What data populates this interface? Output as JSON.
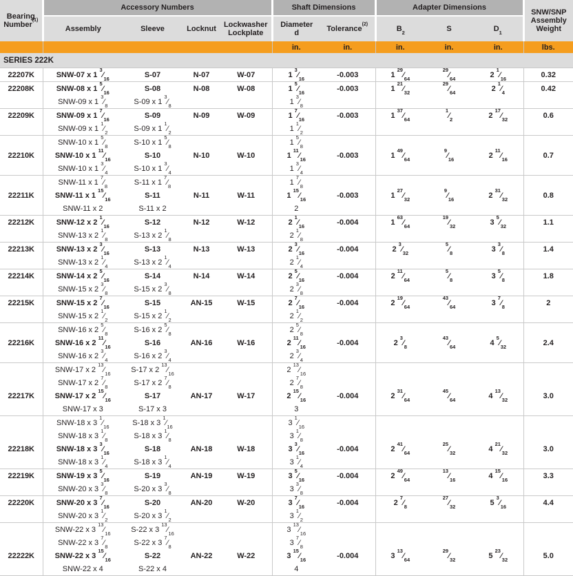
{
  "header": {
    "bearing": {
      "text": "Bearing Number",
      "sup": "(1)"
    },
    "accessory_group": "Accessory Numbers",
    "shaft_group": "Shaft Dimensions",
    "adapter_group": "Adapter Dimensions",
    "weight": "SNW/SNP Assembly Weight",
    "assembly": "Assembly",
    "sleeve": "Sleeve",
    "locknut": "Locknut",
    "lockwasher": "Lockwasher Lockplate",
    "diameter": {
      "line1": "Diameter",
      "line2": "d"
    },
    "tolerance": {
      "text": "Tolerance",
      "sup": "(2)"
    },
    "b2": {
      "text": "B",
      "sub": "2"
    },
    "s": "S",
    "d1": {
      "text": "D",
      "sub": "1"
    },
    "units": {
      "d": "in.",
      "tol": "in.",
      "b2": "in.",
      "s": "in.",
      "d1": "in.",
      "wt": "lbs."
    }
  },
  "series_label": "SERIES 222K",
  "colors": {
    "orange": "#F59D1E",
    "header_gray": "#DCDCDC",
    "group_gray": "#B2B2B2",
    "line_gray": "#C9C9C9"
  },
  "rows": [
    {
      "bearing": "22207K",
      "lines": [
        {
          "assembly": "SNW-07 x 1 3/16",
          "sleeve": "S-07",
          "locknut": "N-07",
          "lockwasher": "W-07",
          "d": "1 3/16",
          "tol": "-0.003",
          "b2": "1 29/64",
          "s": "29/64",
          "d1": "2 1/16",
          "wt": "0.32",
          "bold": true
        }
      ]
    },
    {
      "bearing": "22208K",
      "lines": [
        {
          "assembly": "SNW-08 x 1 5/16",
          "sleeve": "S-08",
          "locknut": "N-08",
          "lockwasher": "W-08",
          "d": "1 5/16",
          "tol": "-0.003",
          "b2": "1 21/32",
          "s": "29/64",
          "d1": "2 1/4",
          "wt": "0.42",
          "bold": true
        },
        {
          "assembly": "SNW-09 x 1 3/8",
          "sleeve": "S-09 x 1 3/8",
          "d": "1 3/8"
        }
      ]
    },
    {
      "bearing": "22209K",
      "lines": [
        {
          "assembly": "SNW-09 x 1 7/16",
          "sleeve": "S-09",
          "locknut": "N-09",
          "lockwasher": "W-09",
          "d": "1 7/16",
          "tol": "-0.003",
          "b2": "1 37/64",
          "s": "1/2",
          "d1": "2 17/32",
          "wt": "0.6",
          "bold": true
        },
        {
          "assembly": "SNW-09 x 1 1/2",
          "sleeve": "S-09 x 1 1/2",
          "d": "1 1/2"
        }
      ]
    },
    {
      "bearing": "22210K",
      "lines": [
        {
          "assembly": "SNW-10 x 1 5/8",
          "sleeve": "S-10 x 1 5/8",
          "d": "1 5/8"
        },
        {
          "assembly": "SNW-10 x 1 11/16",
          "sleeve": "S-10",
          "locknut": "N-10",
          "lockwasher": "W-10",
          "d": "1 11/16",
          "tol": "-0.003",
          "b2": "1 49/64",
          "s": "9/16",
          "d1": "2 11/16",
          "wt": "0.7",
          "bold": true
        },
        {
          "assembly": "SNW-10 x 1 3/4",
          "sleeve": "S-10 x 1 3/4",
          "d": "1 3/4"
        }
      ]
    },
    {
      "bearing": "22211K",
      "lines": [
        {
          "assembly": "SNW-11 x 1 7/8",
          "sleeve": "S-11 x 1 7/8",
          "d": "1 7/8"
        },
        {
          "assembly": "SNW-11 x 1 15/16",
          "sleeve": "S-11",
          "locknut": "N-11",
          "lockwasher": "W-11",
          "d": "1 15/16",
          "tol": "-0.003",
          "b2": "1 27/32",
          "s": "9/16",
          "d1": "2 31/32",
          "wt": "0.8",
          "bold": true
        },
        {
          "assembly": "SNW-11 x 2",
          "sleeve": "S-11 x 2",
          "d": "2"
        }
      ]
    },
    {
      "bearing": "22212K",
      "lines": [
        {
          "assembly": "SNW-12 x 2 1/16",
          "sleeve": "S-12",
          "locknut": "N-12",
          "lockwasher": "W-12",
          "d": "2 1/16",
          "tol": "-0.004",
          "b2": "1 63/64",
          "s": "19/32",
          "d1": "3 5/32",
          "wt": "1.1",
          "bold": true
        },
        {
          "assembly": "SNW-13 x 2 1/8",
          "sleeve": "S-13 x 2 1/8",
          "d": "2 1/8"
        }
      ]
    },
    {
      "bearing": "22213K",
      "lines": [
        {
          "assembly": "SNW-13 x 2 3/16",
          "sleeve": "S-13",
          "locknut": "N-13",
          "lockwasher": "W-13",
          "d": "2 3/16",
          "tol": "-0.004",
          "b2": "2 3/32",
          "s": "5/8",
          "d1": "3 3/8",
          "wt": "1.4",
          "bold": true
        },
        {
          "assembly": "SNW-13 x 2 1/4",
          "sleeve": "S-13 x 2 1/4",
          "d": "2 1/4"
        }
      ]
    },
    {
      "bearing": "22214K",
      "lines": [
        {
          "assembly": "SNW-14 x 2 5/16",
          "sleeve": "S-14",
          "locknut": "N-14",
          "lockwasher": "W-14",
          "d": "2 5/16",
          "tol": "-0.004",
          "b2": "2 11/64",
          "s": "5/8",
          "d1": "3 5/8",
          "wt": "1.8",
          "bold": true
        },
        {
          "assembly": "SNW-15 x 2 3/8",
          "sleeve": "S-15 x 2 3/8",
          "d": "2 3/8"
        }
      ]
    },
    {
      "bearing": "22215K",
      "lines": [
        {
          "assembly": "SNW-15 x 2 7/16",
          "sleeve": "S-15",
          "locknut": "AN-15",
          "lockwasher": "W-15",
          "d": "2 7/16",
          "tol": "-0.004",
          "b2": "2 19/64",
          "s": "43/64",
          "d1": "3 7/8",
          "wt": "2",
          "bold": true
        },
        {
          "assembly": "SNW-15 x 2 1/2",
          "sleeve": "S-15 x 2 1/2",
          "d": "2 1/2"
        }
      ]
    },
    {
      "bearing": "22216K",
      "lines": [
        {
          "assembly": "SNW-16 x 2 5/8",
          "sleeve": "S-16 x 2 5/8",
          "d": "2 5/8"
        },
        {
          "assembly": "SNW-16 x 2 11/16",
          "sleeve": "S-16",
          "locknut": "AN-16",
          "lockwasher": "W-16",
          "d": "2 11/16",
          "tol": "-0.004",
          "b2": "2 3/8",
          "s": "43/64",
          "d1": "4 5/32",
          "wt": "2.4",
          "bold": true
        },
        {
          "assembly": "SNW-16 x 2 3/4",
          "sleeve": "S-16 x 2 3/4",
          "d": "2 3/4"
        }
      ]
    },
    {
      "bearing": "22217K",
      "lines": [
        {
          "assembly": "SNW-17 x 2 13/16",
          "sleeve": "S-17 x 2 13/16",
          "d": "2 13/16"
        },
        {
          "assembly": "SNW-17 x 2 7/8",
          "sleeve": "S-17 x 2 7/8",
          "d": "2 7/8"
        },
        {
          "assembly": "SNW-17 x 2 15/16",
          "sleeve": "S-17",
          "locknut": "AN-17",
          "lockwasher": "W-17",
          "d": "2 15/16",
          "tol": "-0.004",
          "b2": "2 31/64",
          "s": "45/64",
          "d1": "4 13/32",
          "wt": "3.0",
          "bold": true
        },
        {
          "assembly": "SNW-17 x 3",
          "sleeve": "S-17 x 3",
          "d": "3"
        }
      ]
    },
    {
      "bearing": "22218K",
      "lines": [
        {
          "assembly": "SNW-18 x 3 1/16",
          "sleeve": "S-18 x 3 1/16",
          "d": "3 1/16"
        },
        {
          "assembly": "SNW-18 x 3 1/8",
          "sleeve": "S-18 x 3 1/8",
          "d": "3 1/8"
        },
        {
          "assembly": "SNW-18 x 3 3/16",
          "sleeve": "S-18",
          "locknut": "AN-18",
          "lockwasher": "W-18",
          "d": "3 3/16",
          "tol": "-0.004",
          "b2": "2 41/64",
          "s": "25/32",
          "d1": "4 21/32",
          "wt": "3.0",
          "bold": true
        },
        {
          "assembly": "SNW-18 x 3 1/4",
          "sleeve": "S-18 x 3 1/4",
          "d": "3 1/4"
        }
      ]
    },
    {
      "bearing": "22219K",
      "lines": [
        {
          "assembly": "SNW-19 x 3 5/16",
          "sleeve": "S-19",
          "locknut": "AN-19",
          "lockwasher": "W-19",
          "d": "3 5/16",
          "tol": "-0.004",
          "b2": "2 49/64",
          "s": "13/16",
          "d1": "4 15/16",
          "wt": "3.3",
          "bold": true
        },
        {
          "assembly": "SNW-20 x 3 3/8",
          "sleeve": "S-20 x 3 3/8",
          "d": "3 3/8"
        }
      ]
    },
    {
      "bearing": "22220K",
      "lines": [
        {
          "assembly": "SNW-20 x 3 7/16",
          "sleeve": "S-20",
          "locknut": "AN-20",
          "lockwasher": "W-20",
          "d": "3 7/16",
          "tol": "-0.004",
          "b2": "2 7/8",
          "s": "27/32",
          "d1": "5 3/16",
          "wt": "4.4",
          "bold": true
        },
        {
          "assembly": "SNW-20 x 3 1/2",
          "sleeve": "S-20 x 3 1/2",
          "d": "3 1/2"
        }
      ]
    },
    {
      "bearing": "22222K",
      "lines": [
        {
          "assembly": "SNW-22 x 3 13/16",
          "sleeve": "S-22 x 3 13/16",
          "d": "3 13/16"
        },
        {
          "assembly": "SNW-22 x 3 7/8",
          "sleeve": "S-22 x 3 7/8",
          "d": "3 7/8"
        },
        {
          "assembly": "SNW-22 x 3 15/16",
          "sleeve": "S-22",
          "locknut": "AN-22",
          "lockwasher": "W-22",
          "d": "3 15/16",
          "tol": "-0.004",
          "b2": "3 13/64",
          "s": "29/32",
          "d1": "5 23/32",
          "wt": "5.0",
          "bold": true
        },
        {
          "assembly": "SNW-22 x 4",
          "sleeve": "S-22 x 4",
          "d": "4"
        }
      ]
    }
  ]
}
